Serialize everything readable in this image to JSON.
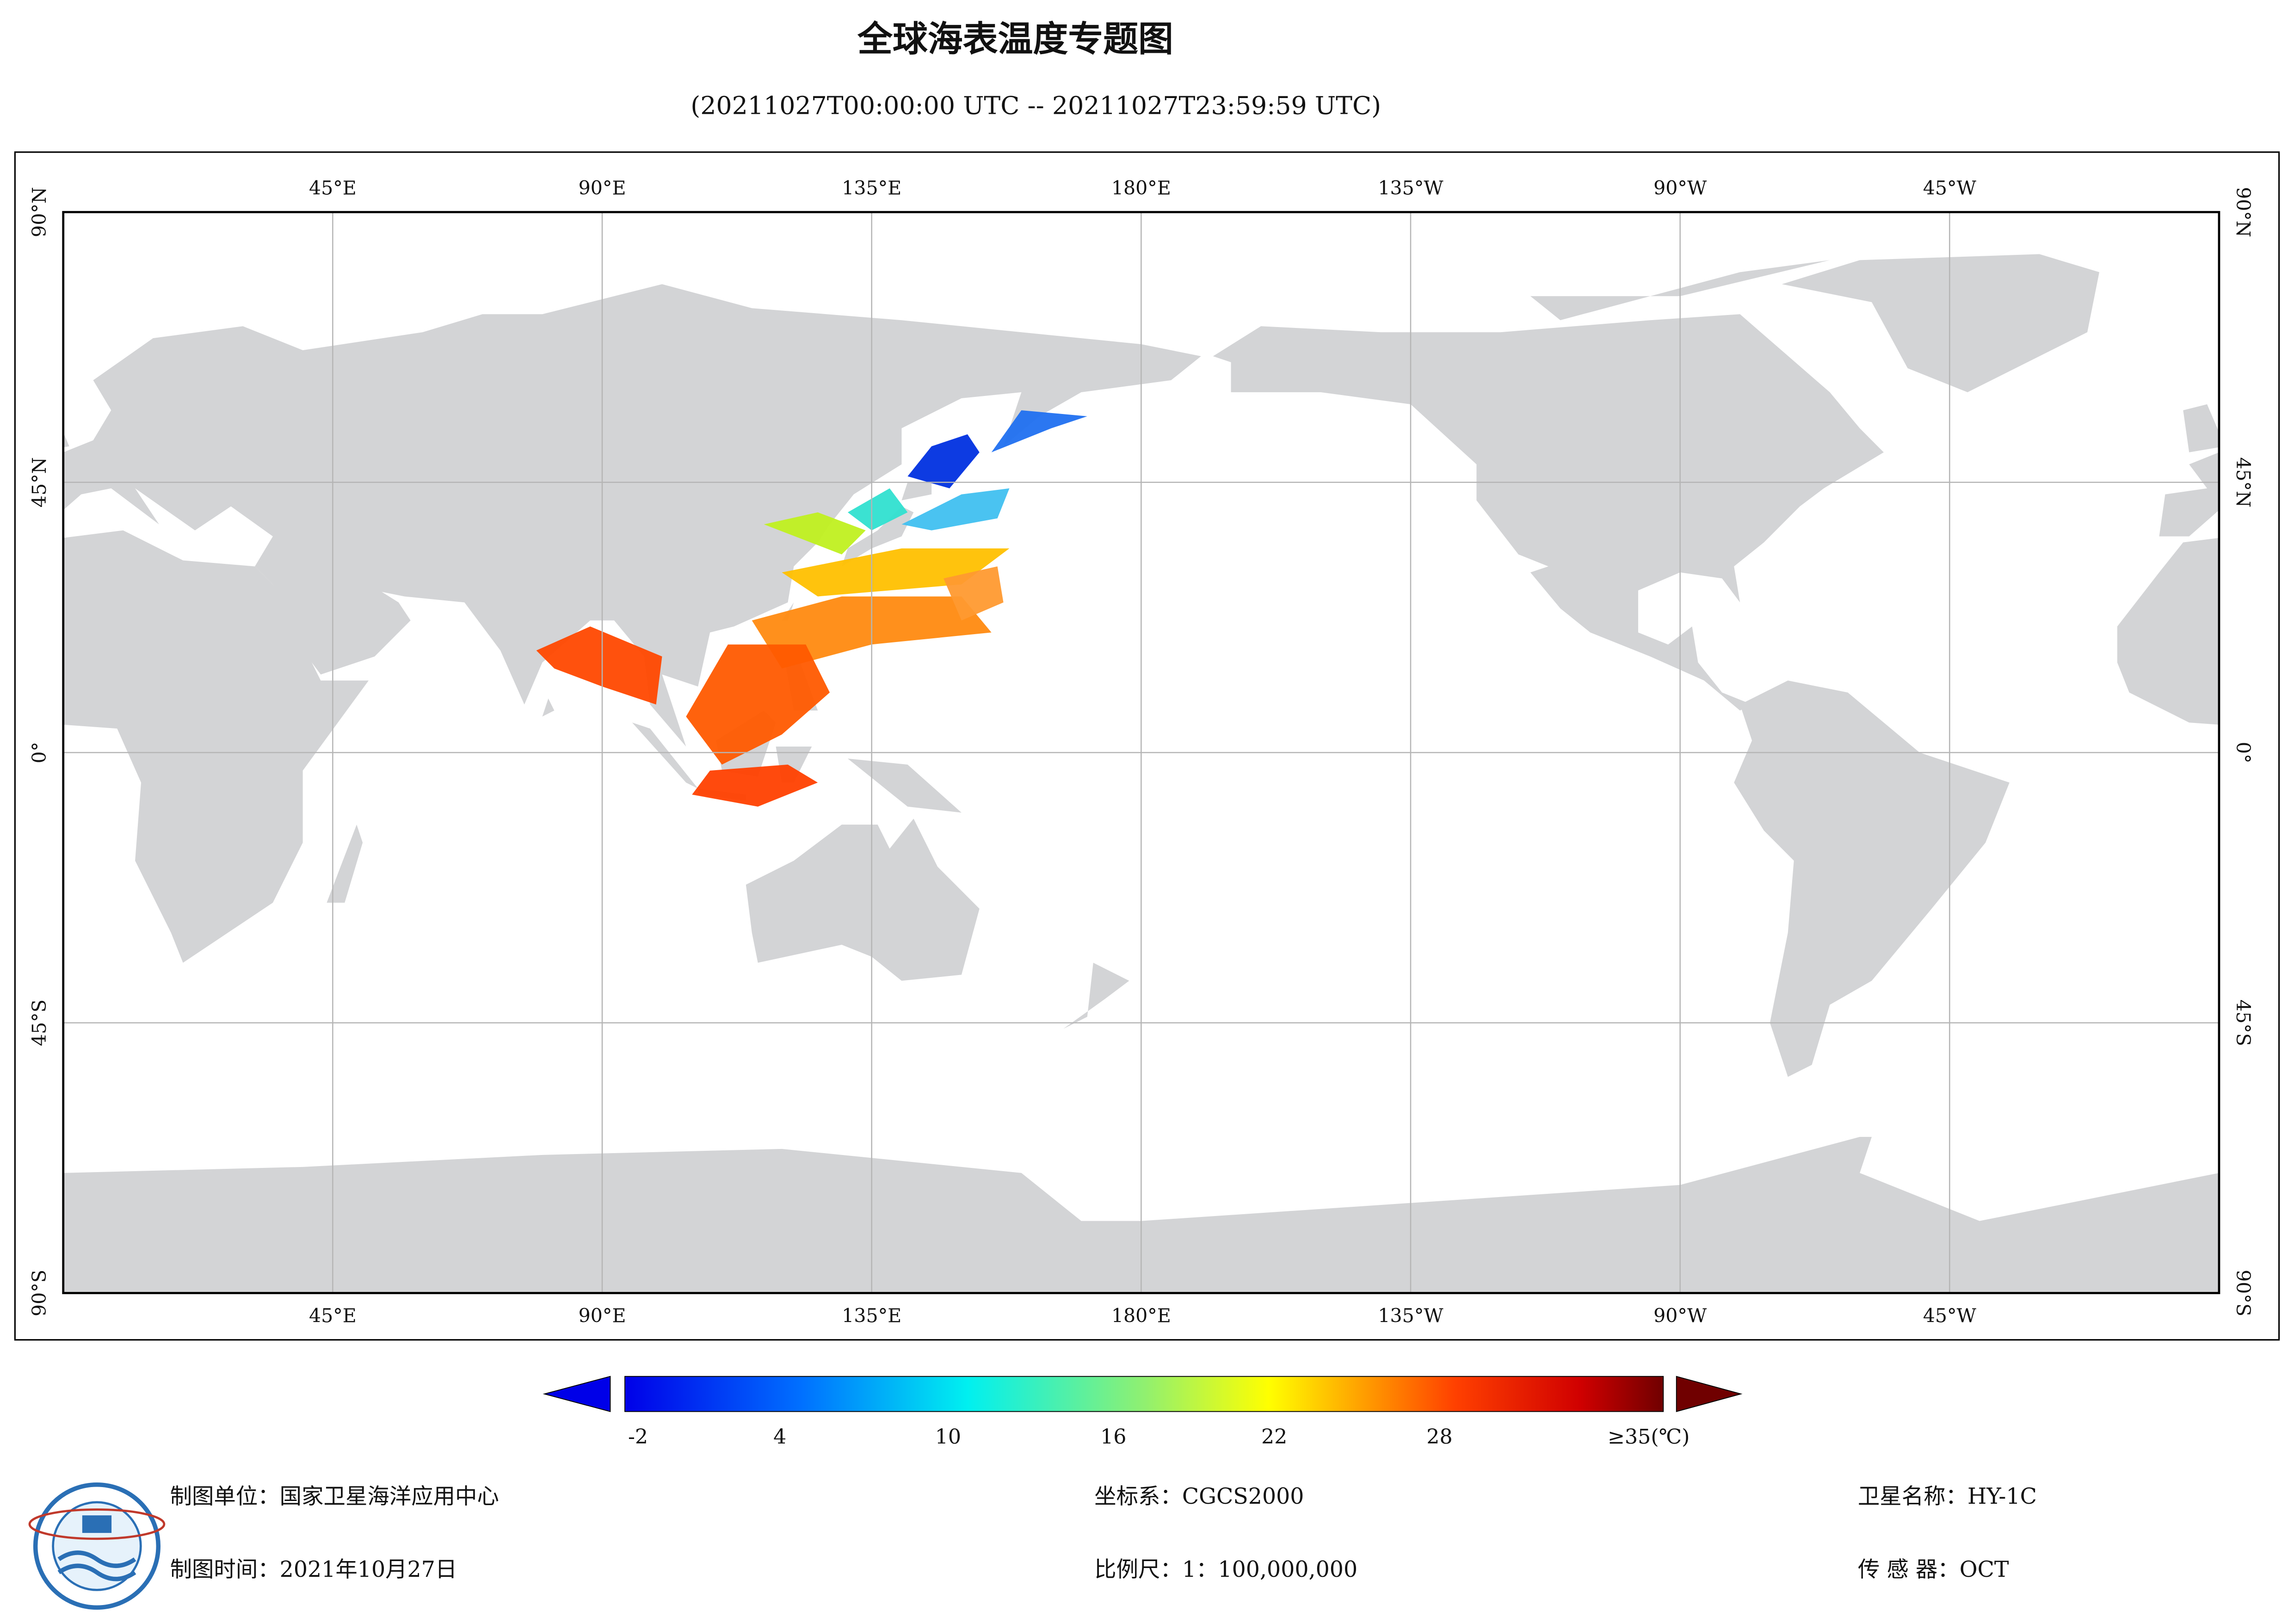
{
  "header": {
    "title": "全球海表温度专题图",
    "subtitle": "(20211027T00:00:00 UTC -- 20211027T23:59:59 UTC)"
  },
  "map": {
    "lon_labels": [
      "45°E",
      "90°E",
      "135°E",
      "180°E",
      "135°W",
      "90°W",
      "45°W"
    ],
    "lat_labels": [
      "90°N",
      "45°N",
      "0°",
      "45°S",
      "90°S"
    ]
  },
  "colorbar": {
    "ticks": [
      "-2",
      "4",
      "10",
      "16",
      "22",
      "28",
      "≥35(℃)"
    ]
  },
  "footer": {
    "unit": "制图单位：国家卫星海洋应用中心",
    "time": "制图时间：2021年10月27日",
    "crs": "坐标系：CGCS2000",
    "scale": "比例尺：1：100,000,000",
    "satellite": "卫星名称：HY-1C",
    "sensor": "传 感 器：OCT"
  }
}
